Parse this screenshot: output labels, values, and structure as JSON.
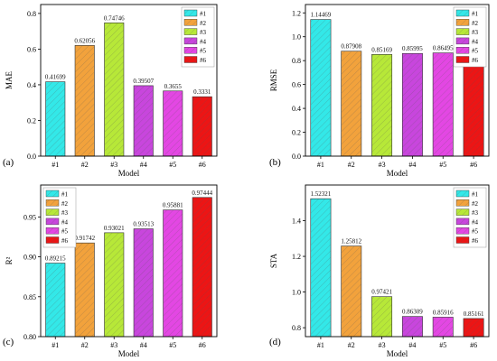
{
  "figure": {
    "panel_labels": [
      "(a)",
      "(b)",
      "(c)",
      "(d)"
    ]
  },
  "colors": {
    "#1": "#33e8e8",
    "#2": "#f2a23c",
    "#3": "#b7e838",
    "#4": "#c846dd",
    "#5": "#e347e3",
    "#6": "#ec1515"
  },
  "chart_data": [
    {
      "type": "bar",
      "panel": "(a)",
      "categories": [
        "#1",
        "#2",
        "#3",
        "#4",
        "#5",
        "#6"
      ],
      "values": [
        0.41699,
        0.62056,
        0.74746,
        0.39507,
        0.3655,
        0.3331
      ],
      "value_labels": [
        "0.41699",
        "0.62056",
        "0.74746",
        "0.39507",
        "0.3655",
        "0.3331"
      ],
      "xlabel": "Model",
      "ylabel": "MAE",
      "ylim": [
        0.0,
        0.85
      ],
      "yticks": [
        0.0,
        0.2,
        0.4,
        0.6,
        0.8
      ],
      "ytick_labels": [
        "0.0",
        "0.2",
        "0.4",
        "0.6",
        "0.8"
      ],
      "legend": [
        "#1",
        "#2",
        "#3",
        "#4",
        "#5",
        "#6"
      ],
      "legend_position": "top-right",
      "grid": false
    },
    {
      "type": "bar",
      "panel": "(b)",
      "categories": [
        "#1",
        "#2",
        "#3",
        "#4",
        "#5",
        "#6"
      ],
      "values": [
        1.14469,
        0.87908,
        0.85169,
        0.85995,
        0.86495,
        0.76935
      ],
      "value_labels": [
        "1.14469",
        "0.87908",
        "0.85169",
        "0.85995",
        "0.86495",
        "0.76935"
      ],
      "xlabel": "Model",
      "ylabel": "RMSE",
      "ylim": [
        0.0,
        1.27
      ],
      "yticks": [
        0.0,
        0.2,
        0.4,
        0.6,
        0.8,
        1.0,
        1.2
      ],
      "ytick_labels": [
        "0.0",
        "0.2",
        "0.4",
        "0.6",
        "0.8",
        "1.0",
        "1.2"
      ],
      "legend": [
        "#1",
        "#2",
        "#3",
        "#4",
        "#5",
        "#6"
      ],
      "legend_position": "top-right",
      "grid": false
    },
    {
      "type": "bar",
      "panel": "(c)",
      "categories": [
        "#1",
        "#2",
        "#3",
        "#4",
        "#5",
        "#6"
      ],
      "values": [
        0.89215,
        0.91742,
        0.93021,
        0.93513,
        0.95881,
        0.97444
      ],
      "value_labels": [
        "0.89215",
        "0.91742",
        "0.93021",
        "0.93513",
        "0.95881",
        "0.97444"
      ],
      "xlabel": "Model",
      "ylabel": "R²",
      "ylim": [
        0.8,
        0.99
      ],
      "yticks": [
        0.8,
        0.85,
        0.9,
        0.95
      ],
      "ytick_labels": [
        "0.80",
        "0.85",
        "0.90",
        "0.95"
      ],
      "legend": [
        "#1",
        "#2",
        "#3",
        "#4",
        "#5",
        "#6"
      ],
      "legend_position": "top-left",
      "grid": false
    },
    {
      "type": "bar",
      "panel": "(d)",
      "categories": [
        "#1",
        "#2",
        "#3",
        "#4",
        "#5",
        "#6"
      ],
      "values": [
        1.52321,
        1.25812,
        0.97421,
        0.86309,
        0.85916,
        0.85161
      ],
      "value_labels": [
        "1.52321",
        "1.25812",
        "0.97421",
        "0.86309",
        "0.85916",
        "0.85161"
      ],
      "xlabel": "Model",
      "ylabel": "STA",
      "ylim": [
        0.75,
        1.6
      ],
      "yticks": [
        0.8,
        1.0,
        1.2,
        1.4
      ],
      "ytick_labels": [
        "0.8",
        "1.0",
        "1.2",
        "1.4"
      ],
      "legend": [
        "#1",
        "#2",
        "#3",
        "#4",
        "#5",
        "#6"
      ],
      "legend_position": "top-right",
      "grid": false
    }
  ]
}
